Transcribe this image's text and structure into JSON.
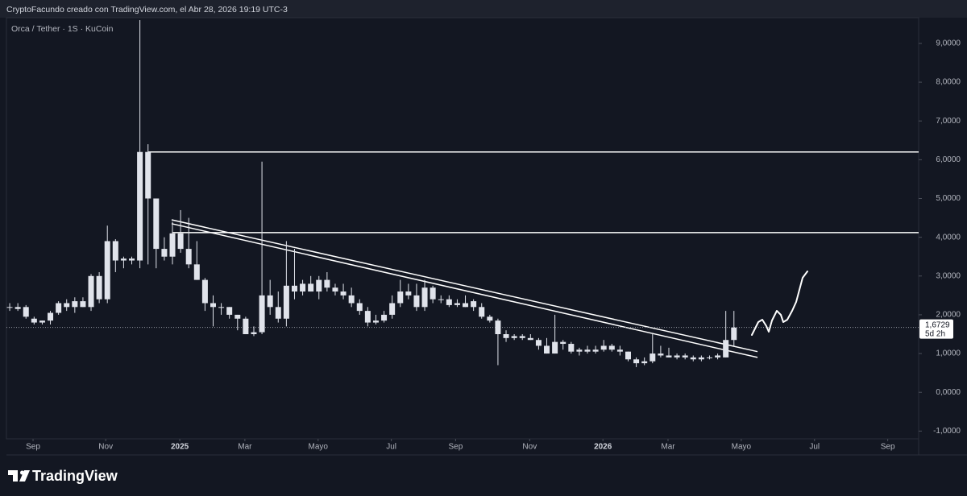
{
  "header_text": "CryptoFacundo creado con TradingView.com, el Abr 28, 2026 19:19 UTC-3",
  "brand": "TradingView",
  "chart_data": {
    "type": "candlestick",
    "title": "Orca / Tether · 1S · KuCoin",
    "color": "#e0e3eb",
    "x": [
      0,
      1,
      2,
      3,
      4,
      5,
      6,
      7,
      8,
      9,
      10,
      11,
      12,
      13,
      14,
      15,
      16,
      17,
      18,
      19,
      20,
      21,
      22,
      23,
      24,
      25,
      26,
      27,
      28,
      29,
      30,
      31,
      32,
      33,
      34,
      35,
      36,
      37,
      38,
      39,
      40,
      41,
      42,
      43,
      44,
      45,
      46,
      47,
      48,
      49,
      50,
      51,
      52,
      53,
      54,
      55,
      56,
      57,
      58,
      59,
      60,
      61,
      62,
      63,
      64,
      65,
      66,
      67,
      68,
      69,
      70,
      71,
      72,
      73,
      74,
      75,
      76,
      77,
      78,
      79,
      80,
      81,
      82,
      83,
      84,
      85,
      86,
      87,
      88,
      89
    ],
    "open": [
      2.2,
      2.2,
      2.2,
      1.9,
      1.8,
      1.85,
      2.05,
      2.3,
      2.2,
      2.35,
      2.2,
      3.0,
      2.4,
      3.9,
      3.4,
      3.45,
      3.4,
      6.2,
      5.0,
      3.7,
      3.5,
      4.1,
      3.7,
      3.3,
      2.9,
      2.3,
      2.2,
      2.2,
      2.0,
      1.9,
      1.5,
      1.55,
      2.5,
      2.2,
      1.9,
      2.75,
      2.6,
      2.8,
      2.6,
      2.9,
      2.7,
      2.6,
      2.5,
      2.3,
      2.1,
      1.8,
      1.85,
      2.0,
      2.3,
      2.6,
      2.5,
      2.2,
      2.7,
      2.4,
      2.4,
      2.25,
      2.3,
      2.2,
      2.2,
      1.95,
      1.85,
      1.5,
      1.4,
      1.45,
      1.4,
      1.35,
      1.2,
      1.0,
      1.3,
      1.25,
      1.05,
      1.1,
      1.05,
      1.1,
      1.2,
      1.1,
      1.05,
      0.85,
      0.75,
      0.8,
      1.0,
      0.95,
      0.9,
      0.95,
      0.9,
      0.85,
      0.9,
      0.9,
      0.9,
      1.35
    ],
    "high": [
      2.3,
      2.3,
      2.25,
      1.95,
      1.85,
      2.1,
      2.35,
      2.4,
      2.45,
      2.45,
      3.05,
      3.1,
      4.3,
      3.95,
      3.5,
      3.5,
      9.6,
      6.4,
      5.0,
      4.0,
      4.4,
      4.7,
      4.5,
      3.9,
      2.95,
      2.5,
      2.3,
      2.2,
      2.0,
      1.95,
      1.7,
      5.95,
      2.9,
      2.6,
      3.9,
      3.7,
      2.9,
      3.0,
      3.0,
      3.1,
      2.8,
      2.8,
      2.7,
      2.4,
      2.2,
      2.0,
      2.1,
      2.5,
      2.9,
      2.8,
      2.8,
      2.9,
      2.75,
      2.5,
      2.5,
      2.4,
      2.5,
      2.4,
      2.3,
      2.0,
      1.9,
      1.6,
      1.5,
      1.5,
      1.5,
      1.4,
      1.4,
      2.0,
      1.35,
      1.3,
      1.15,
      1.2,
      1.2,
      1.35,
      1.25,
      1.2,
      1.05,
      0.9,
      0.9,
      1.5,
      1.2,
      1.15,
      1.0,
      1.0,
      0.95,
      0.95,
      0.95,
      1.0,
      2.1,
      2.1
    ],
    "low": [
      2.1,
      2.1,
      1.9,
      1.75,
      1.75,
      1.75,
      2.0,
      2.1,
      2.05,
      2.2,
      2.1,
      2.3,
      2.3,
      3.1,
      3.2,
      3.3,
      3.2,
      3.3,
      3.2,
      3.4,
      3.3,
      3.6,
      3.2,
      2.9,
      2.1,
      1.7,
      2.0,
      1.9,
      1.6,
      1.5,
      1.45,
      1.5,
      2.0,
      1.8,
      1.7,
      2.4,
      2.5,
      2.6,
      2.4,
      2.6,
      2.5,
      2.4,
      2.2,
      2.0,
      1.7,
      1.75,
      1.8,
      1.9,
      2.2,
      2.4,
      2.1,
      2.1,
      2.3,
      2.3,
      2.2,
      2.2,
      2.2,
      2.1,
      1.9,
      1.8,
      0.7,
      1.3,
      1.35,
      1.35,
      1.35,
      1.1,
      1.0,
      1.0,
      1.1,
      1.0,
      0.95,
      1.0,
      1.0,
      1.05,
      1.05,
      0.95,
      0.8,
      0.65,
      0.7,
      0.75,
      0.9,
      0.9,
      0.85,
      0.85,
      0.8,
      0.8,
      0.85,
      0.85,
      0.9,
      1.2
    ],
    "close": [
      2.2,
      2.15,
      1.95,
      1.8,
      1.85,
      2.05,
      2.3,
      2.2,
      2.35,
      2.2,
      3.0,
      2.4,
      3.9,
      3.4,
      3.45,
      3.4,
      6.2,
      5.0,
      3.7,
      3.5,
      4.1,
      3.7,
      3.3,
      2.9,
      2.3,
      2.2,
      2.2,
      2.0,
      1.9,
      1.5,
      1.55,
      2.5,
      2.2,
      1.9,
      2.75,
      2.6,
      2.8,
      2.6,
      2.9,
      2.7,
      2.6,
      2.5,
      2.3,
      2.1,
      1.8,
      1.85,
      2.0,
      2.3,
      2.6,
      2.5,
      2.2,
      2.7,
      2.4,
      2.4,
      2.25,
      2.3,
      2.2,
      2.35,
      1.95,
      1.85,
      1.5,
      1.4,
      1.45,
      1.4,
      1.35,
      1.2,
      1.0,
      1.3,
      1.25,
      1.05,
      1.1,
      1.05,
      1.1,
      1.2,
      1.1,
      1.05,
      0.85,
      0.75,
      0.8,
      1.0,
      0.95,
      0.9,
      0.95,
      0.9,
      0.85,
      0.9,
      0.9,
      0.95,
      1.35,
      1.67
    ],
    "xlim": [
      -0.4,
      111.7
    ],
    "xticks": [
      {
        "value": 2.87,
        "label": "Sep"
      },
      {
        "value": 11.8,
        "label": "Nov"
      },
      {
        "value": 20.9,
        "label": "2025"
      },
      {
        "value": 28.9,
        "label": "Mar"
      },
      {
        "value": 37.9,
        "label": "Mayo"
      },
      {
        "value": 46.9,
        "label": "Jul"
      },
      {
        "value": 54.8,
        "label": "Sep"
      },
      {
        "value": 63.9,
        "label": "Nov"
      },
      {
        "value": 72.9,
        "label": "2026"
      },
      {
        "value": 80.9,
        "label": "Mar"
      },
      {
        "value": 89.9,
        "label": "Mayo"
      },
      {
        "value": 98.9,
        "label": "Jul"
      },
      {
        "value": 107.9,
        "label": "Sep"
      }
    ],
    "ylim": [
      -1.2,
      9.663
    ],
    "yticks": [
      {
        "value": 9,
        "label": "9,0000"
      },
      {
        "value": 8,
        "label": "8,0000"
      },
      {
        "value": 7,
        "label": "7,0000"
      },
      {
        "value": 6,
        "label": "6,0000"
      },
      {
        "value": 5,
        "label": "5,0000"
      },
      {
        "value": 4,
        "label": "4,0000"
      },
      {
        "value": 3,
        "label": "3,0000"
      },
      {
        "value": 2,
        "label": "2,0000"
      },
      {
        "value": 1,
        "label": "1,0000"
      },
      {
        "value": 0,
        "label": "0,0000"
      },
      {
        "value": -1,
        "label": "-1,0000"
      }
    ],
    "last_price": {
      "value": 1.6729,
      "label": "1,6729"
    },
    "countdown": "5d 2h",
    "hlines": [
      {
        "y": 6.2,
        "x0": 17
      },
      {
        "y": 4.12,
        "x0": 20
      }
    ],
    "trendlines": [
      {
        "x": [
          19.9,
          91.9
        ],
        "y": [
          4.45,
          1.05
        ]
      },
      {
        "x": [
          19.9,
          91.9
        ],
        "y": [
          4.35,
          0.9
        ]
      }
    ]
  }
}
